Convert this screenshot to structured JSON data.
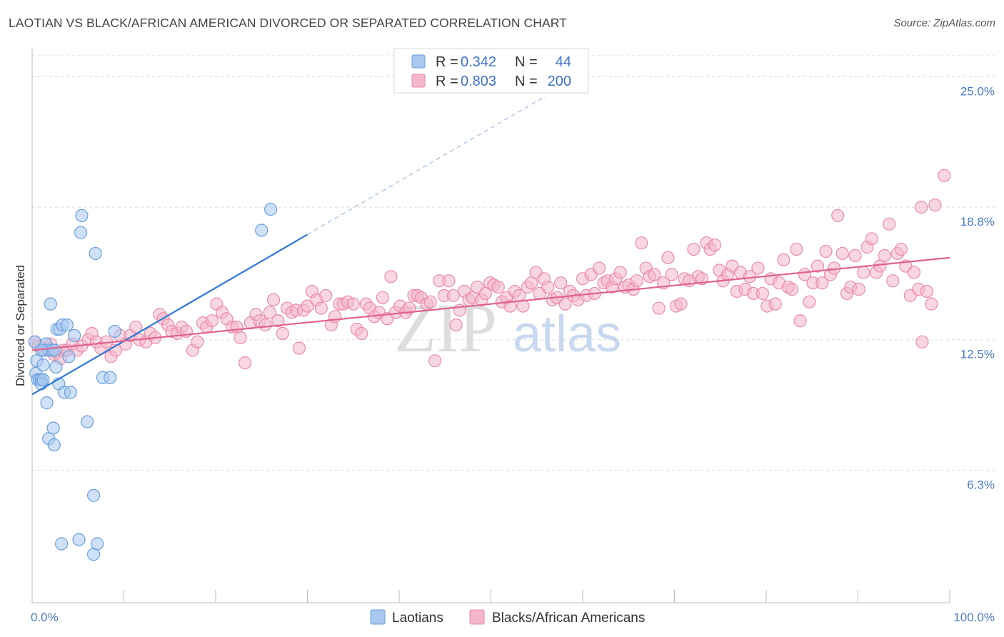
{
  "title": "LAOTIAN VS BLACK/AFRICAN AMERICAN DIVORCED OR SEPARATED CORRELATION CHART",
  "source": "Source: ZipAtlas.com",
  "watermark": {
    "zip": "ZIP",
    "atlas": "atlas"
  },
  "colors": {
    "blue_fill": "#a8c8f0",
    "blue_stroke": "#6a9fdc",
    "blue_line": "#2f78d2",
    "pink_fill": "#f4b6c9",
    "pink_stroke": "#e98bab",
    "pink_line": "#e0628e",
    "tick_text": "#4a7cc9",
    "grid": "#dcdcdc"
  },
  "legend_stats": [
    {
      "r_label": "R =",
      "r_value": "0.342",
      "n_label": "N =",
      "n_value": "44"
    },
    {
      "r_label": "R =",
      "r_value": "0.803",
      "n_label": "N =",
      "n_value": "200"
    }
  ],
  "chart_data": {
    "type": "scatter",
    "title": "LAOTIAN VS BLACK/AFRICAN AMERICAN DIVORCED OR SEPARATED CORRELATION CHART",
    "xlabel": "",
    "ylabel": "Divorced or Separated",
    "xlim": [
      0,
      100
    ],
    "ylim": [
      0,
      26
    ],
    "x_ticks": [
      "0.0%",
      "100.0%"
    ],
    "y_ticks": [
      {
        "value": 6.3,
        "label": "6.3%"
      },
      {
        "value": 12.5,
        "label": "12.5%"
      },
      {
        "value": 18.8,
        "label": "18.8%"
      },
      {
        "value": 25.0,
        "label": "25.0%"
      }
    ],
    "grid": true,
    "legend_position": "top-center",
    "series": [
      {
        "name": "Laotians",
        "r": 0.342,
        "n": 44,
        "trend": {
          "x0": 0,
          "y0": 9.9,
          "x1": 30,
          "y1": 17.5,
          "extend_dashed_to_x": 56
        },
        "points": [
          [
            0.3,
            12.4
          ],
          [
            0.4,
            10.9
          ],
          [
            0.5,
            11.5
          ],
          [
            0.6,
            10.6
          ],
          [
            0.8,
            10.6
          ],
          [
            1.0,
            10.6
          ],
          [
            1.0,
            10.4
          ],
          [
            1.2,
            11.3
          ],
          [
            1.2,
            10.6
          ],
          [
            1.3,
            12.0
          ],
          [
            1.5,
            12.3
          ],
          [
            1.6,
            9.5
          ],
          [
            1.8,
            12.0
          ],
          [
            1.8,
            7.8
          ],
          [
            2.0,
            14.2
          ],
          [
            2.2,
            12.0
          ],
          [
            2.3,
            8.3
          ],
          [
            2.4,
            7.5
          ],
          [
            2.5,
            12.0
          ],
          [
            2.6,
            11.2
          ],
          [
            2.7,
            13.0
          ],
          [
            2.9,
            10.4
          ],
          [
            3.0,
            13.0
          ],
          [
            3.2,
            2.8
          ],
          [
            3.3,
            13.2
          ],
          [
            3.5,
            10.0
          ],
          [
            3.8,
            13.2
          ],
          [
            4.0,
            11.7
          ],
          [
            4.2,
            10.0
          ],
          [
            4.6,
            12.7
          ],
          [
            5.1,
            3.0
          ],
          [
            5.4,
            18.4
          ],
          [
            5.3,
            17.6
          ],
          [
            6.0,
            8.6
          ],
          [
            6.7,
            2.3
          ],
          [
            6.7,
            5.1
          ],
          [
            6.9,
            16.6
          ],
          [
            7.1,
            2.8
          ],
          [
            7.7,
            10.7
          ],
          [
            8.5,
            10.7
          ],
          [
            9.0,
            12.9
          ],
          [
            25.0,
            17.7
          ],
          [
            26.0,
            18.7
          ],
          [
            1.0,
            12.0
          ]
        ]
      },
      {
        "name": "Blacks/African Americans",
        "r": 0.803,
        "n": 200,
        "trend": {
          "x0": 0,
          "y0": 12.0,
          "x1": 100,
          "y1": 16.4
        },
        "points": [
          [
            0.3,
            12.4
          ],
          [
            0.7,
            12.2
          ],
          [
            1.2,
            12.0
          ],
          [
            1.8,
            12.1
          ],
          [
            2.0,
            12.3
          ],
          [
            2.4,
            11.8
          ],
          [
            2.7,
            11.9
          ],
          [
            3.1,
            11.6
          ],
          [
            3.4,
            12.0
          ],
          [
            3.8,
            12.0
          ],
          [
            4.4,
            12.3
          ],
          [
            4.9,
            12.0
          ],
          [
            5.4,
            12.2
          ],
          [
            6.1,
            12.5
          ],
          [
            6.5,
            12.8
          ],
          [
            7.0,
            12.4
          ],
          [
            7.5,
            12.1
          ],
          [
            8.1,
            12.4
          ],
          [
            8.6,
            11.7
          ],
          [
            9.1,
            12.0
          ],
          [
            9.6,
            12.7
          ],
          [
            10.2,
            12.3
          ],
          [
            10.7,
            12.7
          ],
          [
            11.3,
            13.1
          ],
          [
            11.7,
            12.5
          ],
          [
            12.4,
            12.4
          ],
          [
            12.9,
            12.8
          ],
          [
            13.4,
            12.6
          ],
          [
            13.9,
            13.7
          ],
          [
            14.3,
            13.5
          ],
          [
            14.8,
            13.2
          ],
          [
            15.2,
            12.9
          ],
          [
            15.8,
            12.8
          ],
          [
            16.3,
            13.1
          ],
          [
            16.8,
            12.9
          ],
          [
            17.5,
            12.0
          ],
          [
            18.0,
            12.4
          ],
          [
            18.6,
            13.3
          ],
          [
            19.0,
            13.1
          ],
          [
            19.6,
            13.4
          ],
          [
            20.1,
            14.2
          ],
          [
            20.7,
            13.8
          ],
          [
            21.2,
            13.5
          ],
          [
            21.8,
            13.1
          ],
          [
            22.3,
            13.1
          ],
          [
            22.7,
            12.6
          ],
          [
            23.2,
            11.4
          ],
          [
            23.8,
            13.3
          ],
          [
            24.4,
            13.7
          ],
          [
            24.8,
            13.4
          ],
          [
            25.4,
            13.2
          ],
          [
            25.9,
            13.8
          ],
          [
            26.3,
            14.4
          ],
          [
            26.8,
            13.4
          ],
          [
            27.3,
            12.8
          ],
          [
            27.8,
            14.0
          ],
          [
            28.3,
            13.8
          ],
          [
            28.8,
            13.9
          ],
          [
            29.1,
            12.1
          ],
          [
            29.6,
            13.9
          ],
          [
            30.0,
            14.1
          ],
          [
            30.5,
            14.8
          ],
          [
            31.0,
            14.4
          ],
          [
            31.5,
            14.0
          ],
          [
            32.0,
            14.6
          ],
          [
            32.6,
            13.2
          ],
          [
            33.0,
            13.6
          ],
          [
            33.5,
            14.2
          ],
          [
            33.9,
            14.2
          ],
          [
            34.4,
            14.3
          ],
          [
            35.0,
            14.2
          ],
          [
            35.4,
            13.0
          ],
          [
            35.9,
            12.8
          ],
          [
            36.4,
            14.2
          ],
          [
            36.8,
            14.0
          ],
          [
            37.3,
            13.6
          ],
          [
            37.8,
            13.8
          ],
          [
            38.2,
            14.5
          ],
          [
            38.7,
            13.5
          ],
          [
            39.1,
            15.5
          ],
          [
            39.6,
            13.8
          ],
          [
            40.1,
            14.1
          ],
          [
            40.7,
            13.8
          ],
          [
            41.1,
            14.0
          ],
          [
            41.6,
            14.6
          ],
          [
            42.0,
            14.6
          ],
          [
            42.4,
            14.5
          ],
          [
            43.0,
            14.2
          ],
          [
            43.4,
            14.3
          ],
          [
            43.9,
            11.5
          ],
          [
            44.4,
            15.3
          ],
          [
            44.9,
            14.6
          ],
          [
            45.4,
            15.3
          ],
          [
            45.9,
            14.6
          ],
          [
            46.2,
            13.2
          ],
          [
            46.6,
            13.9
          ],
          [
            47.1,
            14.8
          ],
          [
            47.6,
            14.4
          ],
          [
            48.0,
            14.5
          ],
          [
            48.5,
            15.0
          ],
          [
            49.0,
            14.4
          ],
          [
            49.4,
            14.7
          ],
          [
            49.9,
            15.2
          ],
          [
            50.3,
            15.1
          ],
          [
            50.8,
            15.0
          ],
          [
            51.2,
            14.3
          ],
          [
            51.7,
            14.5
          ],
          [
            52.1,
            14.1
          ],
          [
            52.6,
            14.8
          ],
          [
            53.1,
            14.6
          ],
          [
            53.5,
            14.1
          ],
          [
            54.0,
            15.0
          ],
          [
            54.4,
            15.2
          ],
          [
            54.9,
            15.7
          ],
          [
            55.3,
            14.7
          ],
          [
            55.8,
            15.4
          ],
          [
            56.2,
            15.0
          ],
          [
            56.7,
            14.4
          ],
          [
            57.2,
            14.5
          ],
          [
            57.6,
            15.2
          ],
          [
            58.1,
            14.2
          ],
          [
            58.6,
            14.8
          ],
          [
            59.0,
            14.6
          ],
          [
            59.5,
            14.4
          ],
          [
            60.0,
            15.4
          ],
          [
            60.4,
            14.6
          ],
          [
            60.9,
            15.6
          ],
          [
            61.3,
            14.7
          ],
          [
            61.8,
            15.9
          ],
          [
            62.3,
            15.2
          ],
          [
            62.7,
            15.3
          ],
          [
            63.2,
            15.0
          ],
          [
            63.6,
            15.4
          ],
          [
            64.1,
            15.7
          ],
          [
            64.6,
            15.0
          ],
          [
            65.0,
            15.1
          ],
          [
            65.5,
            14.9
          ],
          [
            65.9,
            15.3
          ],
          [
            66.4,
            17.1
          ],
          [
            66.9,
            15.9
          ],
          [
            67.3,
            15.5
          ],
          [
            67.8,
            15.6
          ],
          [
            68.3,
            14.0
          ],
          [
            68.8,
            15.2
          ],
          [
            69.3,
            16.4
          ],
          [
            69.7,
            15.6
          ],
          [
            70.2,
            14.1
          ],
          [
            70.7,
            14.2
          ],
          [
            71.1,
            15.4
          ],
          [
            71.6,
            15.3
          ],
          [
            72.1,
            16.8
          ],
          [
            72.6,
            15.5
          ],
          [
            73.0,
            15.4
          ],
          [
            73.5,
            17.1
          ],
          [
            73.9,
            16.8
          ],
          [
            74.4,
            17.0
          ],
          [
            74.9,
            15.8
          ],
          [
            75.3,
            15.3
          ],
          [
            75.8,
            15.6
          ],
          [
            76.3,
            16.0
          ],
          [
            76.8,
            14.8
          ],
          [
            77.2,
            15.7
          ],
          [
            77.7,
            14.9
          ],
          [
            78.2,
            15.5
          ],
          [
            78.6,
            14.7
          ],
          [
            79.1,
            15.9
          ],
          [
            79.6,
            14.7
          ],
          [
            80.1,
            14.1
          ],
          [
            80.5,
            15.4
          ],
          [
            81.0,
            14.2
          ],
          [
            81.4,
            15.2
          ],
          [
            81.9,
            16.3
          ],
          [
            82.4,
            15.0
          ],
          [
            82.8,
            14.9
          ],
          [
            83.3,
            16.8
          ],
          [
            83.7,
            13.4
          ],
          [
            84.2,
            15.6
          ],
          [
            84.7,
            14.3
          ],
          [
            85.1,
            15.2
          ],
          [
            85.6,
            16.0
          ],
          [
            86.1,
            15.2
          ],
          [
            86.5,
            16.7
          ],
          [
            87.0,
            15.6
          ],
          [
            87.4,
            15.9
          ],
          [
            87.8,
            18.4
          ],
          [
            88.3,
            16.6
          ],
          [
            88.8,
            14.7
          ],
          [
            89.2,
            15.0
          ],
          [
            89.7,
            16.5
          ],
          [
            90.1,
            14.9
          ],
          [
            90.6,
            15.7
          ],
          [
            91.0,
            16.9
          ],
          [
            91.5,
            17.3
          ],
          [
            92.0,
            15.7
          ],
          [
            92.4,
            16.0
          ],
          [
            92.9,
            16.5
          ],
          [
            93.4,
            18.0
          ],
          [
            93.8,
            15.3
          ],
          [
            94.3,
            16.6
          ],
          [
            94.7,
            16.8
          ],
          [
            95.2,
            16.0
          ],
          [
            95.7,
            14.6
          ],
          [
            96.1,
            15.7
          ],
          [
            96.6,
            14.9
          ],
          [
            97.0,
            12.4
          ],
          [
            97.5,
            14.8
          ],
          [
            98.0,
            14.2
          ],
          [
            98.4,
            18.9
          ],
          [
            99.4,
            20.3
          ],
          [
            96.9,
            18.8
          ]
        ]
      }
    ]
  }
}
